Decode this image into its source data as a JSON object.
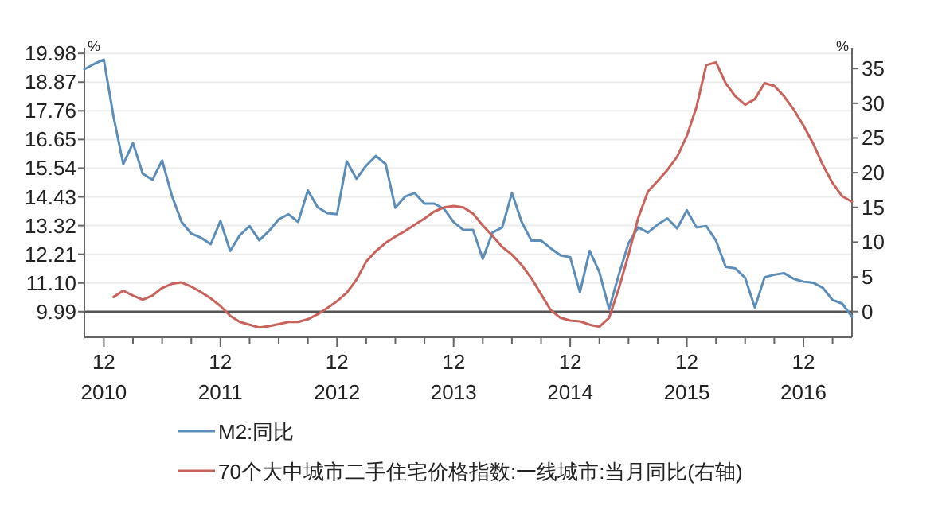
{
  "chart_data": {
    "type": "line",
    "ylabel": "%",
    "y2label": "%",
    "x": [
      "2010-10",
      "2010-11",
      "2010-12",
      "2011-01",
      "2011-02",
      "2011-03",
      "2011-04",
      "2011-05",
      "2011-06",
      "2011-07",
      "2011-08",
      "2011-09",
      "2011-10",
      "2011-11",
      "2011-12",
      "2012-01",
      "2012-02",
      "2012-03",
      "2012-04",
      "2012-05",
      "2012-06",
      "2012-07",
      "2012-08",
      "2012-09",
      "2012-10",
      "2012-11",
      "2012-12",
      "2013-01",
      "2013-02",
      "2013-03",
      "2013-04",
      "2013-05",
      "2013-06",
      "2013-07",
      "2013-08",
      "2013-09",
      "2013-10",
      "2013-11",
      "2013-12",
      "2014-01",
      "2014-02",
      "2014-03",
      "2014-04",
      "2014-05",
      "2014-06",
      "2014-07",
      "2014-08",
      "2014-09",
      "2014-10",
      "2014-11",
      "2014-12",
      "2015-01",
      "2015-02",
      "2015-03",
      "2015-04",
      "2015-05",
      "2015-06",
      "2015-07",
      "2015-08",
      "2015-09",
      "2015-10",
      "2015-11",
      "2015-12",
      "2016-01",
      "2016-02",
      "2016-03",
      "2016-04",
      "2016-05",
      "2016-06",
      "2016-07",
      "2016-08",
      "2016-09",
      "2016-10",
      "2016-11",
      "2016-12",
      "2017-01",
      "2017-02",
      "2017-03",
      "2017-04",
      "2017-05"
    ],
    "series": [
      {
        "name": "M2:同比",
        "color": "#5b8db8",
        "values": [
          19.37,
          19.57,
          19.74,
          17.53,
          15.7,
          16.51,
          15.33,
          15.09,
          15.84,
          14.48,
          13.46,
          13.01,
          12.85,
          12.6,
          13.5,
          12.34,
          12.95,
          13.3,
          12.75,
          13.11,
          13.56,
          13.76,
          13.46,
          14.68,
          14.03,
          13.8,
          13.76,
          15.8,
          15.13,
          15.64,
          16.01,
          15.7,
          14.01,
          14.44,
          14.58,
          14.17,
          14.17,
          13.97,
          13.46,
          13.15,
          13.15,
          12.03,
          13.05,
          13.25,
          14.58,
          13.46,
          12.74,
          12.74,
          12.44,
          12.17,
          12.09,
          10.74,
          12.34,
          11.52,
          10.09,
          11.42,
          12.64,
          13.25,
          13.05,
          13.36,
          13.6,
          13.21,
          13.91,
          13.25,
          13.3,
          12.74,
          11.72,
          11.66,
          11.3,
          10.15,
          11.32,
          11.42,
          11.48,
          11.26,
          11.15,
          11.11,
          10.91,
          10.44,
          10.3,
          9.79
        ]
      },
      {
        "name": "70个大中城市二手住宅价格指数:一线城市:当月同比(右轴)",
        "color": "#c8625c",
        "axis": "y2",
        "values": [
          null,
          null,
          null,
          2.1,
          3.0,
          2.3,
          1.7,
          2.3,
          3.4,
          4.0,
          4.2,
          3.6,
          2.8,
          1.9,
          0.8,
          -0.6,
          -1.5,
          -1.9,
          -2.3,
          -2.1,
          -1.8,
          -1.5,
          -1.5,
          -1.1,
          -0.4,
          0.5,
          1.5,
          2.7,
          4.6,
          7.2,
          8.7,
          9.9,
          10.8,
          11.6,
          12.5,
          13.4,
          14.4,
          15.0,
          15.2,
          15.0,
          14.1,
          12.4,
          10.9,
          9.3,
          8.2,
          6.7,
          4.8,
          2.5,
          0.2,
          -0.9,
          -1.3,
          -1.4,
          -1.9,
          -2.2,
          -0.9,
          3.3,
          8.2,
          13.5,
          17.3,
          18.8,
          20.4,
          22.3,
          25.3,
          29.5,
          35.5,
          35.9,
          32.9,
          31.0,
          29.8,
          30.6,
          32.9,
          32.5,
          31.0,
          29.1,
          26.8,
          24.2,
          21.1,
          18.5,
          16.6,
          15.8
        ]
      }
    ],
    "xlim": [
      "2010-10",
      "2017-05"
    ],
    "xticks": [
      {
        "value": "2010-12",
        "label": "12\n2010"
      },
      {
        "value": "2011-03",
        "label": null
      },
      {
        "value": "2011-06",
        "label": null
      },
      {
        "value": "2011-09",
        "label": null
      },
      {
        "value": "2011-12",
        "label": "12\n2011"
      },
      {
        "value": "2012-03",
        "label": null
      },
      {
        "value": "2012-06",
        "label": null
      },
      {
        "value": "2012-09",
        "label": null
      },
      {
        "value": "2012-12",
        "label": "12\n2012"
      },
      {
        "value": "2013-03",
        "label": null
      },
      {
        "value": "2013-06",
        "label": null
      },
      {
        "value": "2013-09",
        "label": null
      },
      {
        "value": "2013-12",
        "label": "12\n2013"
      },
      {
        "value": "2014-03",
        "label": null
      },
      {
        "value": "2014-06",
        "label": null
      },
      {
        "value": "2014-09",
        "label": null
      },
      {
        "value": "2014-12",
        "label": "12\n2014"
      },
      {
        "value": "2015-03",
        "label": null
      },
      {
        "value": "2015-06",
        "label": null
      },
      {
        "value": "2015-09",
        "label": null
      },
      {
        "value": "2015-12",
        "label": "12\n2015"
      },
      {
        "value": "2016-03",
        "label": null
      },
      {
        "value": "2016-06",
        "label": null
      },
      {
        "value": "2016-09",
        "label": null
      },
      {
        "value": "2016-12",
        "label": "12\n2016"
      },
      {
        "value": "2017-03",
        "label": null
      }
    ],
    "ylim": [
      9.0,
      20.2
    ],
    "yticks": [
      9.99,
      {
        "value": 11.1,
        "label": "11.10"
      },
      12.21,
      13.32,
      14.43,
      15.54,
      16.65,
      17.76,
      18.87,
      19.98
    ],
    "y2lim": [
      -3.7,
      38
    ],
    "y2ticks": [
      0,
      5,
      10,
      15,
      20,
      25,
      30,
      35
    ],
    "ref_lines": [
      {
        "axis": "y2",
        "value": 0,
        "color": "#555555"
      }
    ],
    "grid": "y",
    "legend": "bottom"
  }
}
